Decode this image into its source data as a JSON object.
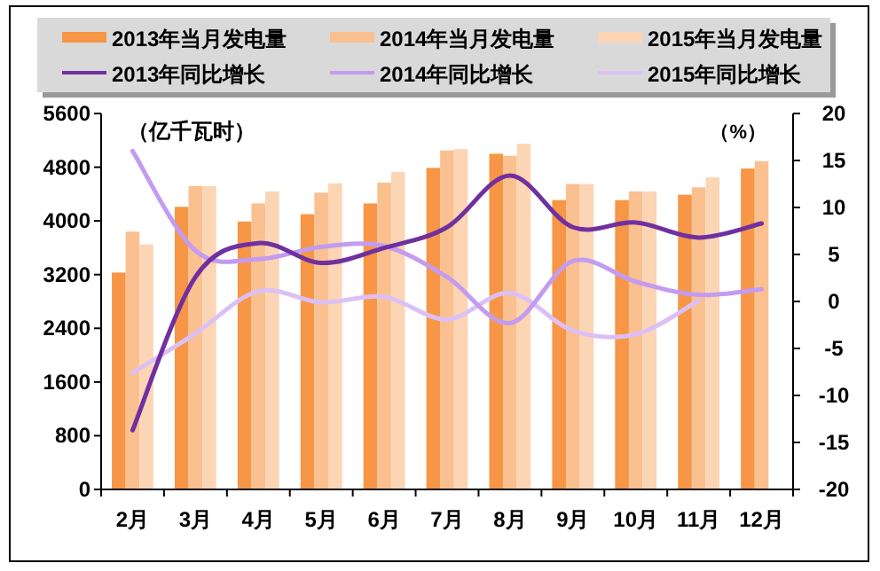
{
  "chart_data": {
    "type": "bar",
    "ylabel": "（亿千瓦时）",
    "y2label": "（%）",
    "categories": [
      "2月",
      "3月",
      "4月",
      "5月",
      "6月",
      "7月",
      "8月",
      "9月",
      "10月",
      "11月",
      "12月"
    ],
    "ylim": [
      0,
      5600
    ],
    "yticks": [
      0,
      800,
      1600,
      2400,
      3200,
      4000,
      4800,
      5600
    ],
    "y2lim": [
      -20,
      20
    ],
    "y2ticks": [
      -20,
      -15,
      -10,
      -5,
      0,
      5,
      10,
      15,
      20
    ],
    "legend": "top",
    "grid": false,
    "series": [
      {
        "name": "2013年当月发电量",
        "color": "#f79646",
        "values": [
          3230,
          4210,
          3990,
          4100,
          4260,
          4790,
          5000,
          4310,
          4310,
          4390,
          4780
        ]
      },
      {
        "name": "2014年当月发电量",
        "color": "#fac090",
        "values": [
          3840,
          4520,
          4260,
          4420,
          4570,
          5050,
          4970,
          4550,
          4440,
          4500,
          4890
        ]
      },
      {
        "name": "2015年当月发电量",
        "color": "#fcd5b5",
        "values": [
          3650,
          4520,
          4440,
          4560,
          4730,
          5070,
          5150,
          4550,
          4440,
          4650,
          null
        ]
      },
      {
        "name": "2013年同比增长",
        "type": "line",
        "axis": "y2",
        "color": "#7030a0",
        "values": [
          -13.7,
          2.6,
          6.2,
          4.1,
          5.7,
          7.9,
          13.4,
          7.9,
          8.4,
          6.8,
          8.3
        ]
      },
      {
        "name": "2014年同比增长",
        "type": "line",
        "axis": "y2",
        "color": "#c39bf0",
        "values": [
          16.0,
          5.4,
          4.5,
          5.8,
          5.9,
          2.6,
          -2.3,
          4.3,
          2.1,
          0.7,
          1.3
        ]
      },
      {
        "name": "2015年同比增长",
        "type": "line",
        "axis": "y2",
        "color": "#dcc0f5",
        "values": [
          -7.6,
          -3.4,
          1.1,
          -0.1,
          0.5,
          -1.9,
          0.9,
          -3.1,
          -3.5,
          0.1,
          null
        ]
      }
    ]
  }
}
